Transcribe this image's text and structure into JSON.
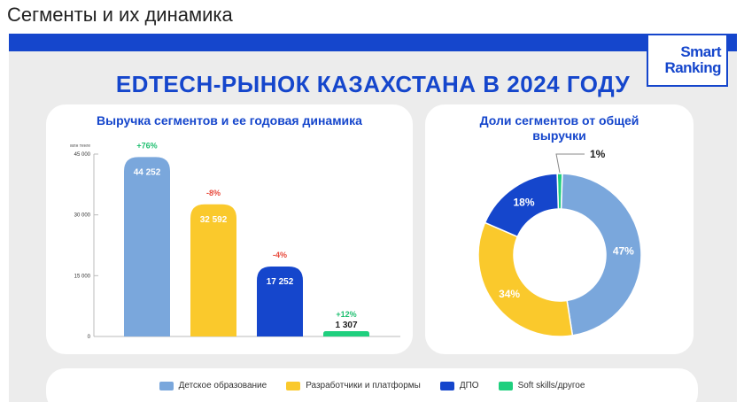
{
  "header": {
    "title": "Сегменты и их динамика"
  },
  "slide": {
    "title": "EDTECH-РЫНОК КАЗАХСТАНА В 2024 ГОДУ",
    "logo": {
      "line1": "Smart",
      "line2": "Ranking"
    }
  },
  "chart_data": [
    {
      "type": "bar",
      "title": "Выручка сегментов и ее годовая динамика",
      "ylabel": "млн тенге",
      "ylim": [
        0,
        45000
      ],
      "yticks": [
        0,
        15000,
        30000,
        45000
      ],
      "ytick_labels": [
        "0",
        "15 000",
        "30 000",
        "45 000"
      ],
      "categories": [
        "Детское образование",
        "Разработчики и платформы",
        "ДПО",
        "Soft skills/другое"
      ],
      "values": [
        44252,
        32592,
        17252,
        1307
      ],
      "value_labels": [
        "44 252",
        "32 592",
        "17 252",
        "1 307"
      ],
      "changes": [
        "+76%",
        "-8%",
        "-4%",
        "+12%"
      ],
      "colors": [
        "#7aa7dc",
        "#fac92c",
        "#1546cc",
        "#1fcf7e"
      ],
      "change_colors": [
        "#1fbf70",
        "#e84a3c",
        "#e84a3c",
        "#1fbf70"
      ]
    },
    {
      "type": "pie",
      "title": "Доли сегментов от общей выручки",
      "categories": [
        "Детское образование",
        "Разработчики и платформы",
        "ДПО",
        "Soft skills/другое"
      ],
      "values": [
        47,
        34,
        18,
        1
      ],
      "labels": [
        "47%",
        "34%",
        "18%",
        "1%"
      ],
      "colors": [
        "#7aa7dc",
        "#fac92c",
        "#1546cc",
        "#1fcf7e"
      ]
    }
  ],
  "legend": [
    {
      "label": "Детское образование",
      "color": "#7aa7dc"
    },
    {
      "label": "Разработчики и платформы",
      "color": "#fac92c"
    },
    {
      "label": "ДПО",
      "color": "#1546cc"
    },
    {
      "label": "Soft skills/другое",
      "color": "#1fcf7e"
    }
  ]
}
